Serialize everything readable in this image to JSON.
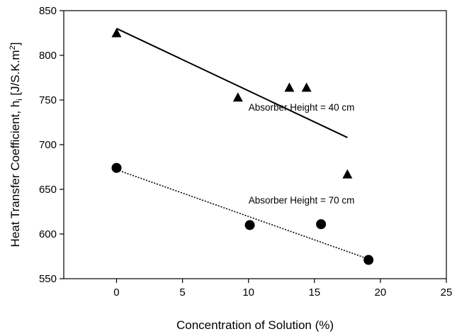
{
  "chart_data": {
    "type": "scatter",
    "title": "",
    "xlabel": "Concentration of Solution (%)",
    "ylabel_main": "Heat Transfer Coefficient, h",
    "ylabel_sub": "i",
    "ylabel_unit": " [J/S.K.m",
    "ylabel_sup": "2",
    "ylabel_close": "]",
    "xlim": [
      -4,
      25
    ],
    "ylim": [
      550,
      850
    ],
    "xticks": [
      0,
      5,
      10,
      15,
      20,
      25
    ],
    "yticks": [
      550,
      600,
      650,
      700,
      750,
      800,
      850
    ],
    "grid": false,
    "series": [
      {
        "marker": "triangle",
        "points": [
          {
            "x": 0,
            "y": 825
          },
          {
            "x": 9.2,
            "y": 753
          },
          {
            "x": 13.1,
            "y": 764
          },
          {
            "x": 14.4,
            "y": 764
          },
          {
            "x": 17.5,
            "y": 667
          }
        ],
        "trendline": {
          "style": "solid",
          "from": [
            0,
            830
          ],
          "to": [
            17.5,
            708
          ]
        },
        "annotation": {
          "text": "Absorber Height = 40 cm",
          "x": 10,
          "y": 738
        }
      },
      {
        "marker": "circle",
        "points": [
          {
            "x": 0,
            "y": 674
          },
          {
            "x": 10.1,
            "y": 610
          },
          {
            "x": 15.5,
            "y": 611
          },
          {
            "x": 19.1,
            "y": 571
          }
        ],
        "trendline": {
          "style": "dotted",
          "from": [
            0,
            672
          ],
          "to": [
            19.1,
            572
          ]
        },
        "annotation": {
          "text": "Absorber Height = 70 cm",
          "x": 10,
          "y": 634
        }
      }
    ]
  }
}
